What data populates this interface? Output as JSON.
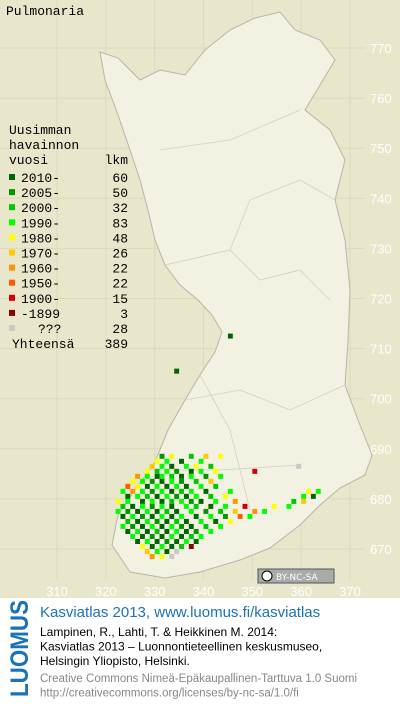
{
  "title": "Pulmonaria",
  "legend": {
    "heading": [
      "Uusimman",
      "havainnon",
      "vuosi"
    ],
    "count_heading": "lkm",
    "items": [
      {
        "label": "2010-",
        "count": 60,
        "color": "#006400"
      },
      {
        "label": "2005-",
        "count": 50,
        "color": "#009600"
      },
      {
        "label": "2000-",
        "count": 32,
        "color": "#00c800"
      },
      {
        "label": "1990-",
        "count": 83,
        "color": "#00ff00"
      },
      {
        "label": "1980-",
        "count": 48,
        "color": "#ffff00"
      },
      {
        "label": "1970-",
        "count": 26,
        "color": "#ffc800"
      },
      {
        "label": "1960-",
        "count": 22,
        "color": "#ff9600"
      },
      {
        "label": "1950-",
        "count": 22,
        "color": "#ff5a00"
      },
      {
        "label": "1900-",
        "count": 15,
        "color": "#d20000"
      },
      {
        "label": "-1899",
        "count": 3,
        "color": "#8c0000"
      },
      {
        "label": "???",
        "count": 28,
        "color": "#c8c8c8"
      }
    ],
    "total_label": "Yhteensä",
    "total": 389
  },
  "map": {
    "xlim": [
      300,
      380
    ],
    "ylim": [
      660,
      780
    ],
    "xticks": [
      310,
      320,
      330,
      340,
      350,
      360,
      370
    ],
    "yticks": [
      670,
      680,
      690,
      700,
      710,
      720,
      730,
      740,
      750,
      760,
      770
    ],
    "squares": [
      [
        345,
        712,
        0
      ],
      [
        334,
        705,
        0
      ],
      [
        359,
        686,
        10
      ],
      [
        350,
        685,
        8
      ],
      [
        343,
        688,
        4
      ],
      [
        331,
        688,
        1
      ],
      [
        333,
        688,
        4
      ],
      [
        337,
        688,
        2
      ],
      [
        340,
        688,
        5
      ],
      [
        330,
        687,
        4
      ],
      [
        332,
        687,
        3
      ],
      [
        335,
        687,
        0
      ],
      [
        339,
        687,
        3
      ],
      [
        329,
        686,
        5
      ],
      [
        331,
        686,
        3
      ],
      [
        333,
        686,
        0
      ],
      [
        336,
        686,
        3
      ],
      [
        338,
        686,
        4
      ],
      [
        341,
        686,
        2
      ],
      [
        328,
        685,
        4
      ],
      [
        330,
        685,
        2
      ],
      [
        332,
        685,
        3
      ],
      [
        334,
        685,
        1
      ],
      [
        337,
        685,
        0
      ],
      [
        339,
        685,
        3
      ],
      [
        342,
        685,
        4
      ],
      [
        326,
        684,
        6
      ],
      [
        328,
        684,
        3
      ],
      [
        330,
        684,
        0
      ],
      [
        331,
        684,
        3
      ],
      [
        333,
        684,
        2
      ],
      [
        335,
        684,
        0
      ],
      [
        337,
        684,
        3
      ],
      [
        340,
        684,
        1
      ],
      [
        343,
        684,
        3
      ],
      [
        325,
        683,
        4
      ],
      [
        327,
        683,
        3
      ],
      [
        329,
        683,
        1
      ],
      [
        331,
        683,
        0
      ],
      [
        333,
        683,
        3
      ],
      [
        335,
        683,
        1
      ],
      [
        338,
        683,
        2
      ],
      [
        341,
        683,
        5
      ],
      [
        324,
        682,
        7
      ],
      [
        326,
        682,
        4
      ],
      [
        328,
        682,
        0
      ],
      [
        330,
        682,
        3
      ],
      [
        332,
        682,
        0
      ],
      [
        334,
        682,
        3
      ],
      [
        336,
        682,
        0
      ],
      [
        339,
        682,
        3
      ],
      [
        342,
        682,
        2
      ],
      [
        323,
        681,
        3
      ],
      [
        325,
        681,
        6
      ],
      [
        327,
        681,
        3
      ],
      [
        329,
        681,
        1
      ],
      [
        331,
        681,
        3
      ],
      [
        333,
        681,
        0
      ],
      [
        335,
        681,
        2
      ],
      [
        337,
        681,
        3
      ],
      [
        340,
        681,
        0
      ],
      [
        345,
        681,
        3
      ],
      [
        361,
        681,
        4
      ],
      [
        363,
        681,
        3
      ],
      [
        324,
        680,
        0
      ],
      [
        326,
        680,
        3
      ],
      [
        328,
        680,
        2
      ],
      [
        330,
        680,
        0
      ],
      [
        332,
        680,
        3
      ],
      [
        334,
        680,
        1
      ],
      [
        336,
        680,
        0
      ],
      [
        338,
        680,
        3
      ],
      [
        341,
        680,
        2
      ],
      [
        344,
        680,
        4
      ],
      [
        360,
        680,
        3
      ],
      [
        362,
        680,
        0
      ],
      [
        322,
        679,
        4
      ],
      [
        324,
        679,
        3
      ],
      [
        327,
        679,
        0
      ],
      [
        329,
        679,
        3
      ],
      [
        331,
        679,
        0
      ],
      [
        333,
        679,
        2
      ],
      [
        335,
        679,
        3
      ],
      [
        337,
        679,
        1
      ],
      [
        339,
        679,
        0
      ],
      [
        342,
        679,
        3
      ],
      [
        346,
        679,
        6
      ],
      [
        358,
        679,
        2
      ],
      [
        360,
        679,
        5
      ],
      [
        323,
        678,
        2
      ],
      [
        325,
        678,
        0
      ],
      [
        327,
        678,
        3
      ],
      [
        329,
        678,
        1
      ],
      [
        331,
        678,
        3
      ],
      [
        333,
        678,
        0
      ],
      [
        336,
        678,
        3
      ],
      [
        338,
        678,
        2
      ],
      [
        341,
        678,
        0
      ],
      [
        344,
        678,
        3
      ],
      [
        348,
        678,
        8
      ],
      [
        354,
        678,
        4
      ],
      [
        357,
        678,
        3
      ],
      [
        322,
        677,
        3
      ],
      [
        324,
        677,
        1
      ],
      [
        326,
        677,
        0
      ],
      [
        328,
        677,
        3
      ],
      [
        330,
        677,
        0
      ],
      [
        332,
        677,
        2
      ],
      [
        334,
        677,
        0
      ],
      [
        337,
        677,
        3
      ],
      [
        340,
        677,
        1
      ],
      [
        343,
        677,
        2
      ],
      [
        346,
        677,
        5
      ],
      [
        350,
        677,
        6
      ],
      [
        352,
        677,
        3
      ],
      [
        323,
        676,
        0
      ],
      [
        325,
        676,
        3
      ],
      [
        327,
        676,
        1
      ],
      [
        329,
        676,
        0
      ],
      [
        331,
        676,
        3
      ],
      [
        333,
        676,
        0
      ],
      [
        335,
        676,
        3
      ],
      [
        338,
        676,
        0
      ],
      [
        341,
        676,
        3
      ],
      [
        344,
        676,
        1
      ],
      [
        347,
        676,
        7
      ],
      [
        349,
        676,
        3
      ],
      [
        324,
        675,
        2
      ],
      [
        326,
        675,
        0
      ],
      [
        328,
        675,
        3
      ],
      [
        330,
        675,
        1
      ],
      [
        332,
        675,
        0
      ],
      [
        334,
        675,
        2
      ],
      [
        336,
        675,
        0
      ],
      [
        339,
        675,
        3
      ],
      [
        342,
        675,
        0
      ],
      [
        345,
        675,
        4
      ],
      [
        323,
        674,
        3
      ],
      [
        325,
        674,
        1
      ],
      [
        327,
        674,
        0
      ],
      [
        329,
        674,
        3
      ],
      [
        331,
        674,
        0
      ],
      [
        333,
        674,
        3
      ],
      [
        335,
        674,
        1
      ],
      [
        337,
        674,
        0
      ],
      [
        340,
        674,
        2
      ],
      [
        343,
        674,
        3
      ],
      [
        324,
        673,
        0
      ],
      [
        326,
        673,
        3
      ],
      [
        328,
        673,
        0
      ],
      [
        330,
        673,
        2
      ],
      [
        332,
        673,
        0
      ],
      [
        334,
        673,
        3
      ],
      [
        336,
        673,
        0
      ],
      [
        338,
        673,
        1
      ],
      [
        341,
        673,
        3
      ],
      [
        325,
        672,
        3
      ],
      [
        327,
        672,
        0
      ],
      [
        329,
        672,
        1
      ],
      [
        331,
        672,
        0
      ],
      [
        333,
        672,
        3
      ],
      [
        335,
        672,
        0
      ],
      [
        337,
        672,
        2
      ],
      [
        339,
        672,
        3
      ],
      [
        326,
        671,
        0
      ],
      [
        328,
        671,
        3
      ],
      [
        330,
        671,
        0
      ],
      [
        332,
        671,
        1
      ],
      [
        334,
        671,
        0
      ],
      [
        336,
        671,
        3
      ],
      [
        338,
        671,
        0
      ],
      [
        327,
        670,
        4
      ],
      [
        329,
        670,
        0
      ],
      [
        331,
        670,
        3
      ],
      [
        333,
        670,
        0
      ],
      [
        335,
        670,
        2
      ],
      [
        337,
        670,
        9
      ],
      [
        328,
        669,
        5
      ],
      [
        330,
        669,
        3
      ],
      [
        332,
        669,
        0
      ],
      [
        334,
        669,
        10
      ],
      [
        329,
        668,
        6
      ],
      [
        331,
        668,
        4
      ],
      [
        333,
        668,
        10
      ]
    ]
  },
  "license_badge": "BY-NC-SA",
  "footer": {
    "logo": "LUOMUS",
    "link": "Kasviatlas 2013, www.luomus.fi/kasviatlas",
    "citation": [
      "Lampinen, R., Lahti, T. & Heikkinen M. 2014:",
      "Kasviatlas 2013 – Luonnontieteellinen keskusmuseo,",
      "Helsingin Yliopisto, Helsinki."
    ],
    "license": [
      "Creative Commons Nimeä-Epäkaupallinen-Tarttuva 1.0 Suomi",
      "http://creativecommons.org/licenses/by-nc-sa/1.0/fi"
    ]
  }
}
